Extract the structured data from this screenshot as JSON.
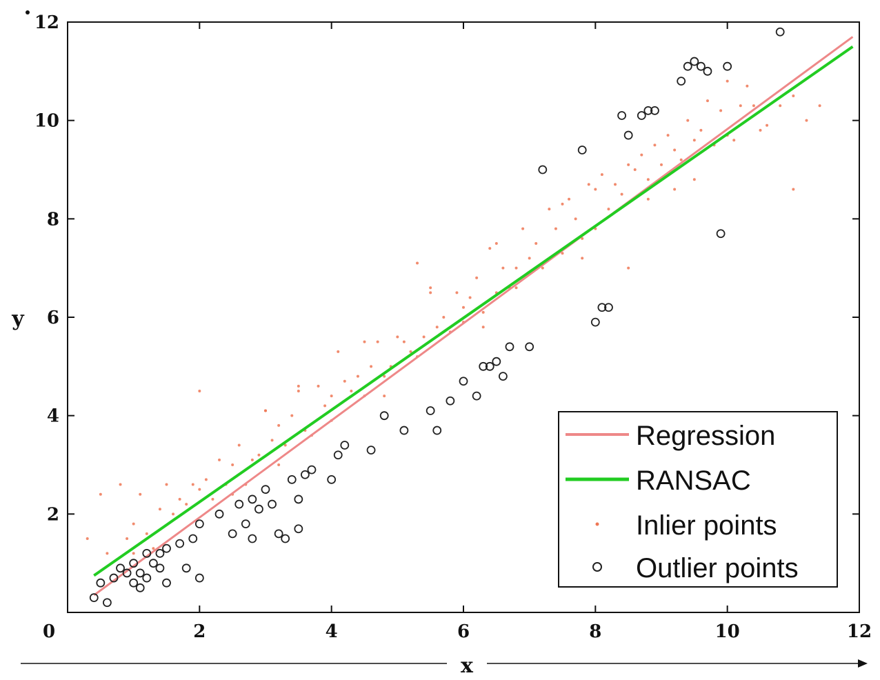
{
  "chart_data": {
    "type": "scatter",
    "title": "",
    "xlabel": "x",
    "ylabel": "y",
    "xlim": [
      0,
      12
    ],
    "ylim": [
      0,
      12
    ],
    "xticks": [
      "0",
      "2",
      "4",
      "6",
      "8",
      "10",
      "12"
    ],
    "yticks": [
      "2",
      "4",
      "6",
      "8",
      "10",
      "12"
    ],
    "grid": false,
    "legend_position": "bottom-right",
    "colors": {
      "regression": "#ee8888",
      "ransac": "#22cc22",
      "inlier": "#ee7755",
      "outlier": "#222222",
      "axis": "#111111"
    },
    "series": [
      {
        "name": "Regression",
        "type": "line",
        "x": [
          0.4,
          11.9
        ],
        "y": [
          0.35,
          11.7
        ]
      },
      {
        "name": "RANSAC",
        "type": "line",
        "x": [
          0.4,
          11.9
        ],
        "y": [
          0.75,
          11.5
        ]
      },
      {
        "name": "Inlier points",
        "type": "scatter",
        "x": [
          0.3,
          0.5,
          0.6,
          0.8,
          0.9,
          1.0,
          1.1,
          1.2,
          1.3,
          1.4,
          1.5,
          1.6,
          1.7,
          1.8,
          1.9,
          2.0,
          2.1,
          2.2,
          2.3,
          2.4,
          2.5,
          2.6,
          2.7,
          2.8,
          2.9,
          3.0,
          3.1,
          3.2,
          3.3,
          3.4,
          3.5,
          3.6,
          3.7,
          3.8,
          3.9,
          4.0,
          4.1,
          4.2,
          4.3,
          4.4,
          4.5,
          4.6,
          4.7,
          4.8,
          4.9,
          5.0,
          5.1,
          5.2,
          5.3,
          5.4,
          5.5,
          5.6,
          5.7,
          5.8,
          5.9,
          6.0,
          6.1,
          6.2,
          6.3,
          6.4,
          6.5,
          6.6,
          6.7,
          6.8,
          6.9,
          7.0,
          7.1,
          7.2,
          7.3,
          7.4,
          7.5,
          7.6,
          7.7,
          7.8,
          7.9,
          8.0,
          8.1,
          8.2,
          8.3,
          8.4,
          8.5,
          8.6,
          8.7,
          8.8,
          8.9,
          9.0,
          9.1,
          9.2,
          9.3,
          9.4,
          9.5,
          9.6,
          9.7,
          9.8,
          9.9,
          10.0,
          10.1,
          10.2,
          10.3,
          10.4,
          10.6,
          10.8,
          11.0,
          11.2,
          11.4,
          2.0,
          3.0,
          3.5,
          4.5,
          5.5,
          6.5,
          7.5,
          8.5,
          9.5,
          1.0,
          2.5,
          4.0,
          6.0,
          8.0,
          10.0,
          3.2,
          4.8,
          6.3,
          7.8,
          9.2,
          5.3,
          6.8,
          8.8,
          10.5,
          11.0
        ],
        "y": [
          1.5,
          2.4,
          1.2,
          2.6,
          1.5,
          1.8,
          2.4,
          1.6,
          1.3,
          2.1,
          2.6,
          2.0,
          2.3,
          2.2,
          2.6,
          2.5,
          2.7,
          2.3,
          3.1,
          2.6,
          3.0,
          3.4,
          2.6,
          3.1,
          3.2,
          4.1,
          3.5,
          3.8,
          3.4,
          4.0,
          4.5,
          3.7,
          3.6,
          4.6,
          4.2,
          4.4,
          5.3,
          4.7,
          4.5,
          4.8,
          4.4,
          5.0,
          5.5,
          4.8,
          5.0,
          5.6,
          5.5,
          5.3,
          7.1,
          5.6,
          6.5,
          5.8,
          6.0,
          5.7,
          6.5,
          5.9,
          6.4,
          6.8,
          6.1,
          7.4,
          6.5,
          7.0,
          6.6,
          7.0,
          7.8,
          7.2,
          7.5,
          7.0,
          8.2,
          7.8,
          7.3,
          8.4,
          8.0,
          7.6,
          8.7,
          8.6,
          8.9,
          8.2,
          8.7,
          8.5,
          7.0,
          9.0,
          9.3,
          8.8,
          9.5,
          9.1,
          9.7,
          9.4,
          9.2,
          10.0,
          9.6,
          9.8,
          10.4,
          9.5,
          10.2,
          10.8,
          9.6,
          10.3,
          10.7,
          10.3,
          9.9,
          10.3,
          10.5,
          10.0,
          10.3,
          4.5,
          4.1,
          4.6,
          5.5,
          6.6,
          7.5,
          8.3,
          9.1,
          8.8,
          1.2,
          2.4,
          3.9,
          6.2,
          7.8,
          9.7,
          3.0,
          4.4,
          5.8,
          7.2,
          8.6,
          5.2,
          6.6,
          8.4,
          9.8,
          8.6
        ]
      },
      {
        "name": "Outlier points",
        "type": "scatter",
        "x": [
          0.4,
          0.5,
          0.6,
          0.7,
          0.8,
          0.9,
          1.0,
          1.0,
          1.1,
          1.1,
          1.2,
          1.2,
          1.3,
          1.4,
          1.4,
          1.5,
          1.5,
          1.7,
          1.8,
          1.9,
          2.0,
          2.0,
          2.3,
          2.5,
          2.6,
          2.7,
          2.8,
          2.8,
          2.9,
          3.0,
          3.1,
          3.2,
          3.3,
          3.4,
          3.5,
          3.5,
          3.6,
          3.7,
          4.0,
          4.1,
          4.2,
          4.6,
          4.8,
          5.1,
          5.5,
          5.6,
          5.8,
          6.0,
          6.2,
          6.3,
          6.4,
          6.5,
          6.6,
          6.7,
          7.0,
          7.2,
          7.8,
          8.0,
          8.1,
          8.2,
          8.4,
          8.5,
          8.7,
          8.8,
          8.9,
          9.3,
          9.4,
          9.5,
          9.6,
          9.7,
          9.9,
          10.0,
          10.8
        ],
        "y": [
          0.3,
          0.6,
          0.2,
          0.7,
          0.9,
          0.8,
          0.6,
          1.0,
          0.5,
          0.8,
          0.7,
          1.2,
          1.0,
          0.9,
          1.2,
          0.6,
          1.3,
          1.4,
          0.9,
          1.5,
          0.7,
          1.8,
          2.0,
          1.6,
          2.2,
          1.8,
          1.5,
          2.3,
          2.1,
          2.5,
          2.2,
          1.6,
          1.5,
          2.7,
          1.7,
          2.3,
          2.8,
          2.9,
          2.7,
          3.2,
          3.4,
          3.3,
          4.0,
          3.7,
          4.1,
          3.7,
          4.3,
          4.7,
          4.4,
          5.0,
          5.0,
          5.1,
          4.8,
          5.4,
          5.4,
          9.0,
          9.4,
          5.9,
          6.2,
          6.2,
          10.1,
          9.7,
          10.1,
          10.2,
          10.2,
          10.8,
          11.1,
          11.2,
          11.1,
          11.0,
          7.7,
          11.1,
          11.8
        ]
      }
    ]
  }
}
